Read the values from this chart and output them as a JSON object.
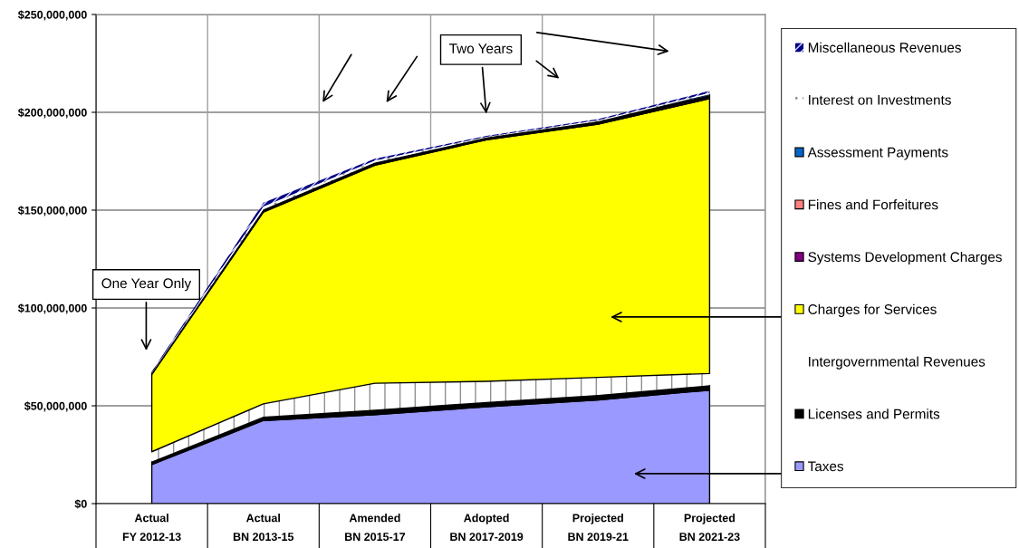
{
  "chart_data": {
    "type": "area",
    "stacked": true,
    "categories": [
      "Actual\nFY 2012-13",
      "Actual\nBN 2013-15",
      "Amended\nBN 2015-17",
      "Adopted\nBN 2017-2019",
      "Projected\nBN 2019-21",
      "Projected\nBN 2021-23"
    ],
    "series": [
      {
        "name": "Taxes",
        "color": "#9999ff",
        "values": [
          20000000,
          42500000,
          45500000,
          49500000,
          53000000,
          58000000
        ]
      },
      {
        "name": "Licenses and Permits",
        "color": "#000000",
        "values": [
          1500000,
          2000000,
          2500000,
          2500000,
          2500000,
          2500000
        ]
      },
      {
        "name": "Intergovernmental Revenues",
        "color": "#ffffff",
        "values": [
          5000000,
          6500000,
          13500000,
          10500000,
          9000000,
          6000000
        ]
      },
      {
        "name": "Charges for Services",
        "color": "#ffff00",
        "values": [
          39500000,
          98000000,
          111500000,
          123500000,
          129500000,
          140500000
        ]
      },
      {
        "name": "Systems Development Charges",
        "color": "#800080",
        "values": [
          300000,
          500000,
          500000,
          500000,
          600000,
          800000
        ]
      },
      {
        "name": "Fines and Forfeitures",
        "color": "#ff8080",
        "values": [
          200000,
          300000,
          300000,
          300000,
          400000,
          600000
        ]
      },
      {
        "name": "Assessment Payments",
        "color": "#0066cc",
        "values": [
          200000,
          500000,
          500000,
          300000,
          400000,
          800000
        ]
      },
      {
        "name": "Interest on Investments",
        "color": "#ffffff",
        "values": [
          300000,
          1500000,
          1000000,
          400000,
          500000,
          800000
        ]
      },
      {
        "name": "Miscellaneous Revenues",
        "color": "#000080",
        "values": [
          500000,
          2000000,
          1000000,
          500000,
          600000,
          1000000
        ]
      }
    ],
    "ylim": [
      0,
      250000000
    ],
    "yticks": [
      {
        "value": 0,
        "label": "$0"
      },
      {
        "value": 50000000,
        "label": "$50,000,000"
      },
      {
        "value": 100000000,
        "label": "$100,000,000"
      },
      {
        "value": 150000000,
        "label": "$150,000,000"
      },
      {
        "value": 200000000,
        "label": "$200,000,000"
      },
      {
        "value": 250000000,
        "label": "$250,000,000"
      }
    ],
    "grid": true,
    "legend": "right",
    "annotations": [
      "One Year Only",
      "Two Years"
    ]
  }
}
